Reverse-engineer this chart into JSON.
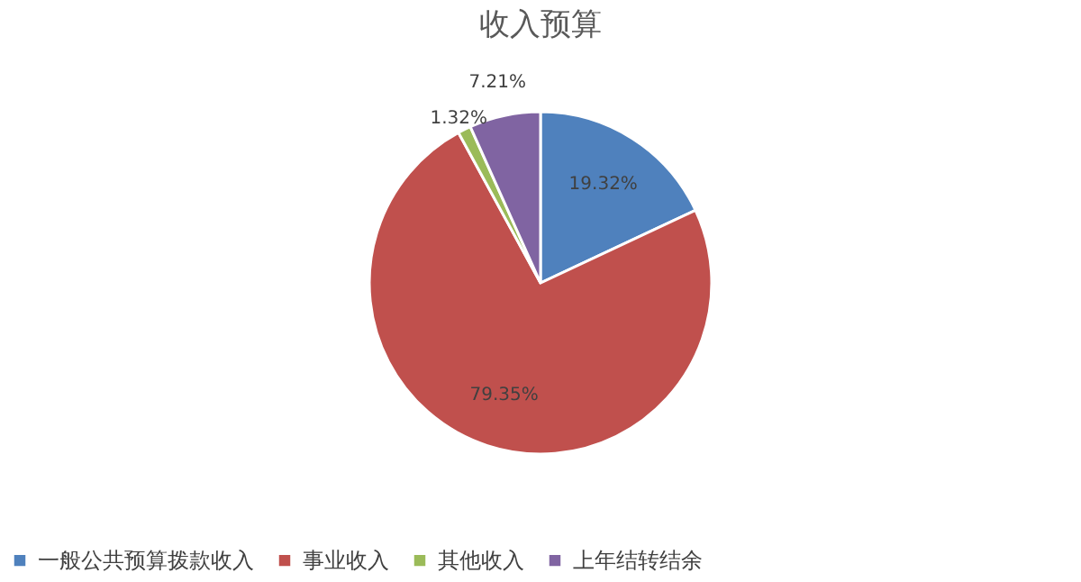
{
  "chart_data": {
    "type": "pie",
    "title": "收入预算",
    "categories": [
      "一般公共预算拨款收入",
      "事业收入",
      "其他收入",
      "上年结转结余"
    ],
    "values": [
      19.32,
      79.35,
      1.32,
      7.21
    ],
    "colors": [
      "#4f81bd",
      "#c0504d",
      "#9bbb59",
      "#8064a2"
    ],
    "value_labels": [
      "19.32%",
      "79.35%",
      "1.32%",
      "7.21%"
    ],
    "legend": "bottom"
  }
}
